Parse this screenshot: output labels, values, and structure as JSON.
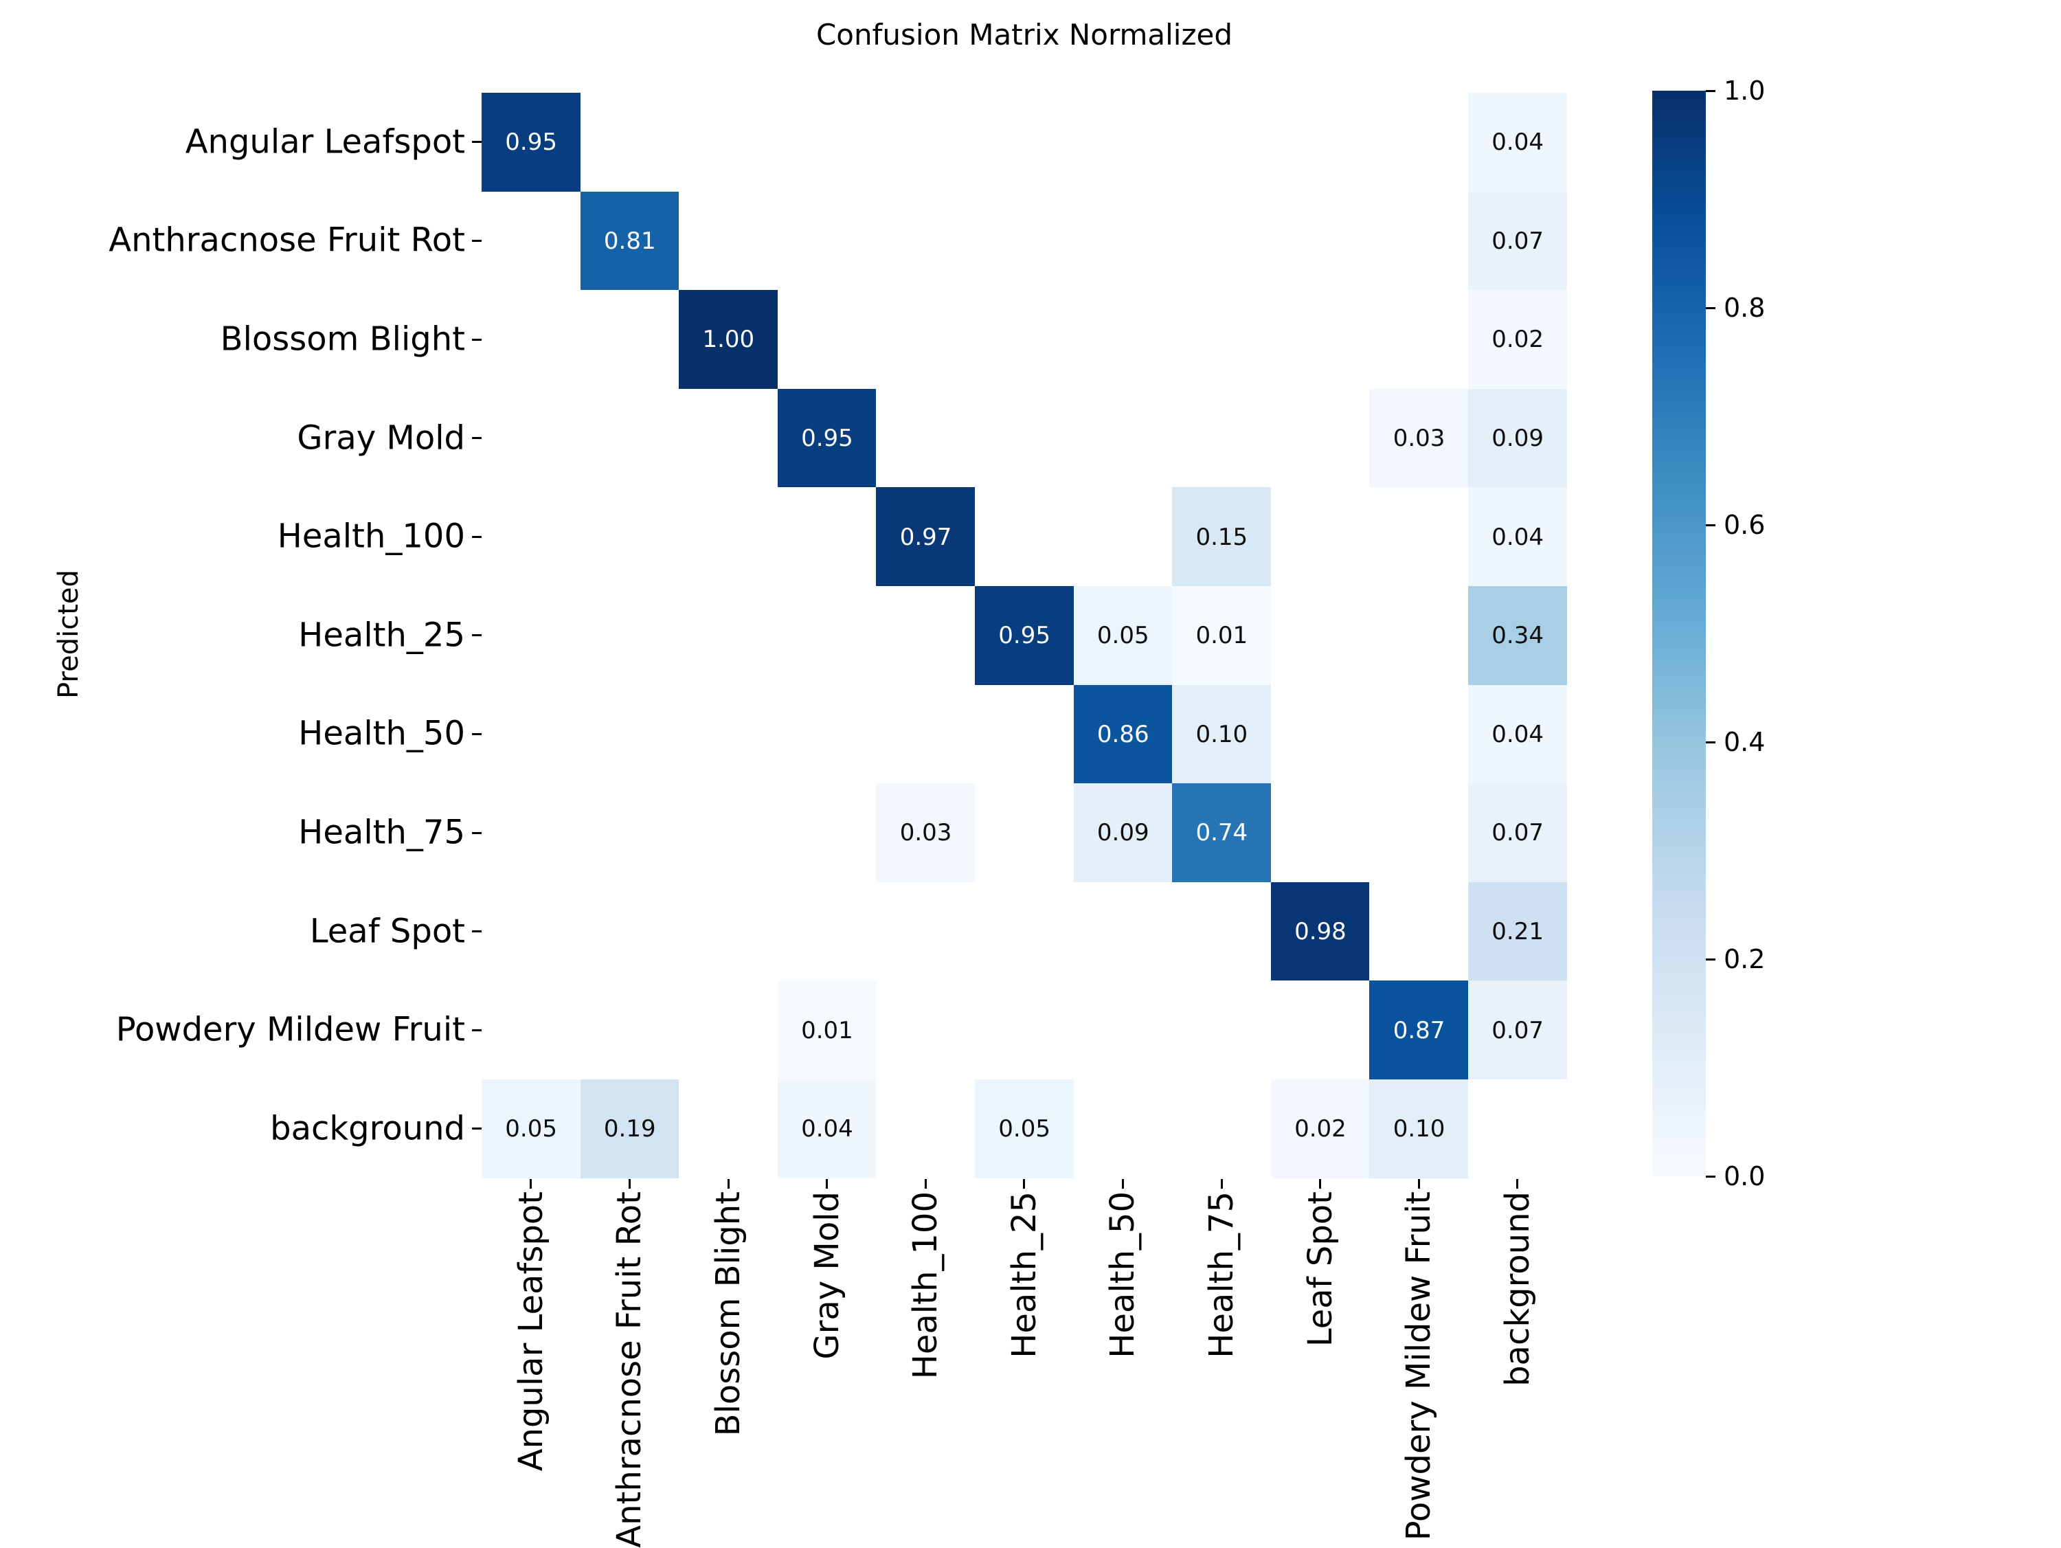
{
  "chart_data": {
    "type": "heatmap",
    "title": "Confusion Matrix Normalized",
    "ylabel": "Predicted",
    "xlabel": "",
    "categories": [
      "Angular Leafspot",
      "Anthracnose Fruit Rot",
      "Blossom Blight",
      "Gray Mold",
      "Health_100",
      "Health_25",
      "Health_50",
      "Health_75",
      "Leaf Spot",
      "Powdery Mildew Fruit",
      "background"
    ],
    "matrix": [
      [
        0.95,
        null,
        null,
        null,
        null,
        null,
        null,
        null,
        null,
        null,
        0.04
      ],
      [
        null,
        0.81,
        null,
        null,
        null,
        null,
        null,
        null,
        null,
        null,
        0.07
      ],
      [
        null,
        null,
        1.0,
        null,
        null,
        null,
        null,
        null,
        null,
        null,
        0.02
      ],
      [
        null,
        null,
        null,
        0.95,
        null,
        null,
        null,
        null,
        null,
        0.03,
        0.09
      ],
      [
        null,
        null,
        null,
        null,
        0.97,
        null,
        null,
        0.15,
        null,
        null,
        0.04
      ],
      [
        null,
        null,
        null,
        null,
        null,
        0.95,
        0.05,
        0.01,
        null,
        null,
        0.34
      ],
      [
        null,
        null,
        null,
        null,
        null,
        null,
        0.86,
        0.1,
        null,
        null,
        0.04
      ],
      [
        null,
        null,
        null,
        null,
        0.03,
        null,
        0.09,
        0.74,
        null,
        null,
        0.07
      ],
      [
        null,
        null,
        null,
        null,
        null,
        null,
        null,
        null,
        0.98,
        null,
        0.21
      ],
      [
        null,
        null,
        null,
        0.01,
        null,
        null,
        null,
        null,
        null,
        0.87,
        0.07
      ],
      [
        0.05,
        0.19,
        null,
        0.04,
        null,
        0.05,
        null,
        null,
        0.02,
        0.1,
        null
      ]
    ],
    "cell_value_format": "two_decimals",
    "grid": false,
    "colormap": "Blues",
    "colormap_stops": [
      [
        0.0,
        "#f7fbff"
      ],
      [
        0.125,
        "#deebf7"
      ],
      [
        0.25,
        "#c6dbef"
      ],
      [
        0.375,
        "#9ecae1"
      ],
      [
        0.5,
        "#6baed6"
      ],
      [
        0.625,
        "#4292c6"
      ],
      [
        0.75,
        "#2171b5"
      ],
      [
        0.875,
        "#08519c"
      ],
      [
        1.0,
        "#08306b"
      ]
    ],
    "empty_cell_color": "#ffffff",
    "annotation_text_light": "#ffffff",
    "annotation_text_dark": "#0d0d0d",
    "colorbar": {
      "min": 0.0,
      "max": 1.0,
      "tick_labels": [
        "1.0",
        "0.8",
        "0.6",
        "0.4",
        "0.2",
        "0.0"
      ],
      "tick_values": [
        1.0,
        0.8,
        0.6,
        0.4,
        0.2,
        0.0
      ],
      "position": "right"
    },
    "background_color": "#ffffff"
  }
}
